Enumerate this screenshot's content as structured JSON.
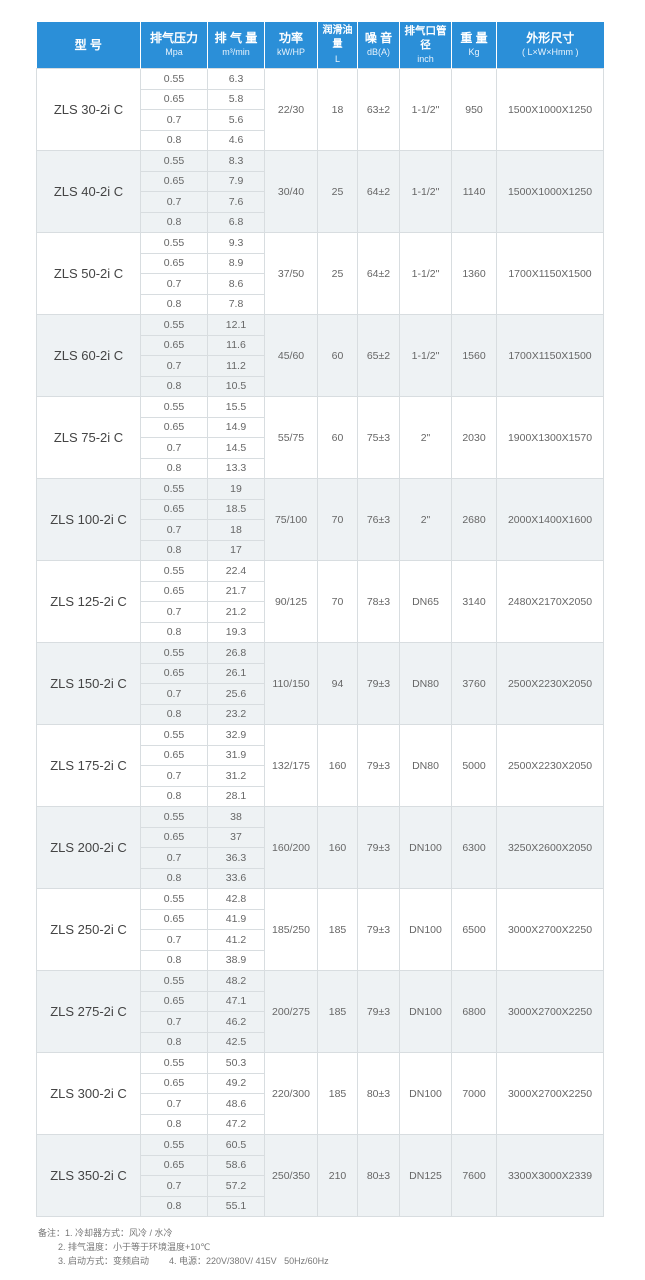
{
  "header": {
    "model": "型 号",
    "pressure": "排气压力",
    "pressure_unit": "Mpa",
    "flow": "排 气 量",
    "flow_unit": "m³/min",
    "power": "功率",
    "power_unit": "kW/HP",
    "oil": "润滑油量",
    "oil_unit": "L",
    "noise": "噪 音",
    "noise_unit": "dB(A)",
    "outlet": "排气口管径",
    "outlet_unit": "inch",
    "weight": "重 量",
    "weight_unit": "Kg",
    "size": "外形尺寸",
    "size_unit": "( L×W×Hmm )"
  },
  "colors": {
    "header": "#2b8fd8",
    "alt_row": "#eef2f4"
  },
  "pressures": [
    "0.55",
    "0.65",
    "0.7",
    "0.8"
  ],
  "rows": [
    {
      "model": "ZLS 30-2i C",
      "flow": [
        "6.3",
        "5.8",
        "5.6",
        "4.6"
      ],
      "power": "22/30",
      "oil": "18",
      "noise": "63±2",
      "outlet": "1-1/2\"",
      "weight": "950",
      "size": "1500X1000X1250"
    },
    {
      "model": "ZLS 40-2i C",
      "flow": [
        "8.3",
        "7.9",
        "7.6",
        "6.8"
      ],
      "power": "30/40",
      "oil": "25",
      "noise": "64±2",
      "outlet": "1-1/2\"",
      "weight": "1140",
      "size": "1500X1000X1250"
    },
    {
      "model": "ZLS 50-2i C",
      "flow": [
        "9.3",
        "8.9",
        "8.6",
        "7.8"
      ],
      "power": "37/50",
      "oil": "25",
      "noise": "64±2",
      "outlet": "1-1/2\"",
      "weight": "1360",
      "size": "1700X1150X1500"
    },
    {
      "model": "ZLS 60-2i C",
      "flow": [
        "12.1",
        "11.6",
        "11.2",
        "10.5"
      ],
      "power": "45/60",
      "oil": "60",
      "noise": "65±2",
      "outlet": "1-1/2\"",
      "weight": "1560",
      "size": "1700X1150X1500"
    },
    {
      "model": "ZLS 75-2i C",
      "flow": [
        "15.5",
        "14.9",
        "14.5",
        "13.3"
      ],
      "power": "55/75",
      "oil": "60",
      "noise": "75±3",
      "outlet": "2\"",
      "weight": "2030",
      "size": "1900X1300X1570"
    },
    {
      "model": "ZLS 100-2i C",
      "flow": [
        "19",
        "18.5",
        "18",
        "17"
      ],
      "power": "75/100",
      "oil": "70",
      "noise": "76±3",
      "outlet": "2\"",
      "weight": "2680",
      "size": "2000X1400X1600"
    },
    {
      "model": "ZLS 125-2i C",
      "flow": [
        "22.4",
        "21.7",
        "21.2",
        "19.3"
      ],
      "power": "90/125",
      "oil": "70",
      "noise": "78±3",
      "outlet": "DN65",
      "weight": "3140",
      "size": "2480X2170X2050"
    },
    {
      "model": "ZLS 150-2i C",
      "flow": [
        "26.8",
        "26.1",
        "25.6",
        "23.2"
      ],
      "power": "110/150",
      "oil": "94",
      "noise": "79±3",
      "outlet": "DN80",
      "weight": "3760",
      "size": "2500X2230X2050"
    },
    {
      "model": "ZLS 175-2i C",
      "flow": [
        "32.9",
        "31.9",
        "31.2",
        "28.1"
      ],
      "power": "132/175",
      "oil": "160",
      "noise": "79±3",
      "outlet": "DN80",
      "weight": "5000",
      "size": "2500X2230X2050"
    },
    {
      "model": "ZLS 200-2i C",
      "flow": [
        "38",
        "37",
        "36.3",
        "33.6"
      ],
      "power": "160/200",
      "oil": "160",
      "noise": "79±3",
      "outlet": "DN100",
      "weight": "6300",
      "size": "3250X2600X2050"
    },
    {
      "model": "ZLS 250-2i C",
      "flow": [
        "42.8",
        "41.9",
        "41.2",
        "38.9"
      ],
      "power": "185/250",
      "oil": "185",
      "noise": "79±3",
      "outlet": "DN100",
      "weight": "6500",
      "size": "3000X2700X2250"
    },
    {
      "model": "ZLS 275-2i C",
      "flow": [
        "48.2",
        "47.1",
        "46.2",
        "42.5"
      ],
      "power": "200/275",
      "oil": "185",
      "noise": "79±3",
      "outlet": "DN100",
      "weight": "6800",
      "size": "3000X2700X2250"
    },
    {
      "model": "ZLS 300-2i C",
      "flow": [
        "50.3",
        "49.2",
        "48.6",
        "47.2"
      ],
      "power": "220/300",
      "oil": "185",
      "noise": "80±3",
      "outlet": "DN100",
      "weight": "7000",
      "size": "3000X2700X2250"
    },
    {
      "model": "ZLS 350-2i C",
      "flow": [
        "60.5",
        "58.6",
        "57.2",
        "55.1"
      ],
      "power": "250/350",
      "oil": "210",
      "noise": "80±3",
      "outlet": "DN125",
      "weight": "7600",
      "size": "3300X3000X2339"
    }
  ],
  "notes": [
    "备注：1. 冷却器方式：风冷 / 水冷",
    "        2. 排气温度：小于等于环境温度+10℃",
    "        3. 启动方式：变频启动        4. 电源：220V/380V/ 415V   50Hz/60Hz"
  ]
}
